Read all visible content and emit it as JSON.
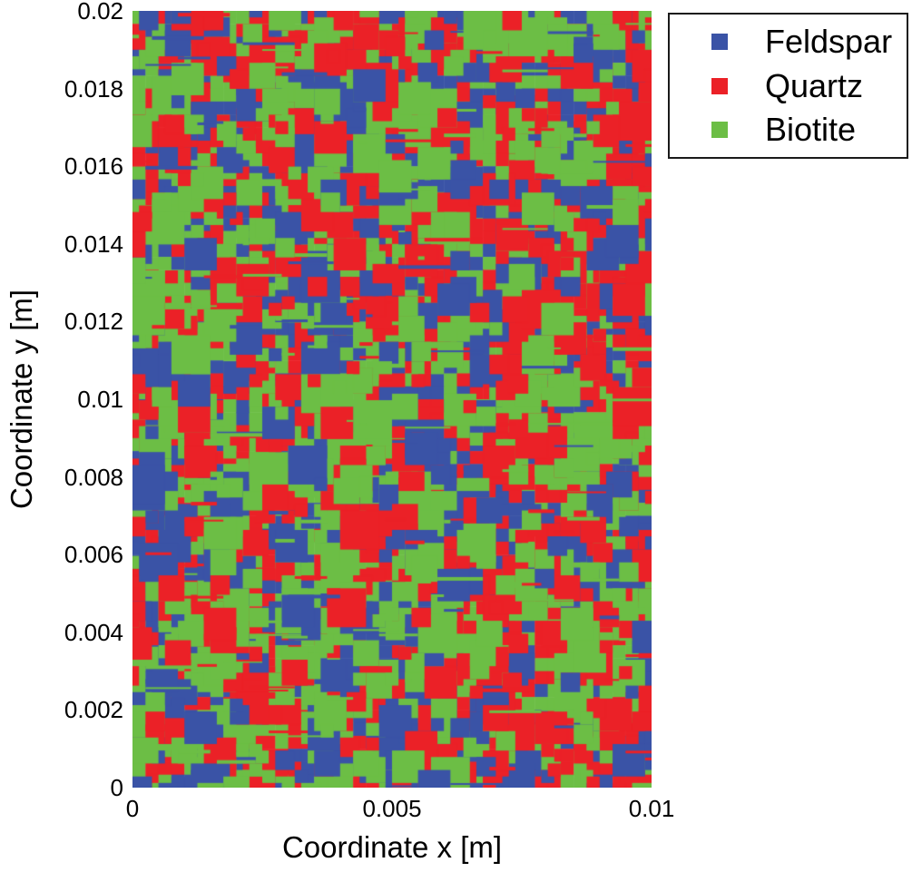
{
  "chart_data": {
    "type": "heatmap",
    "subtype": "categorical-mineral-map",
    "title": "",
    "xlabel": "Coordinate x [m]",
    "ylabel": "Coordinate y [m]",
    "xlim": [
      0,
      0.01
    ],
    "ylim": [
      0,
      0.02
    ],
    "grid": false,
    "axis_frame": false,
    "x_ticks": [
      {
        "value": 0,
        "label": "0"
      },
      {
        "value": 0.005,
        "label": "0.005"
      },
      {
        "value": 0.01,
        "label": "0.01"
      }
    ],
    "y_ticks": [
      {
        "value": 0,
        "label": "0"
      },
      {
        "value": 0.002,
        "label": "0.002"
      },
      {
        "value": 0.004,
        "label": "0.004"
      },
      {
        "value": 0.006,
        "label": "0.006"
      },
      {
        "value": 0.008,
        "label": "0.008"
      },
      {
        "value": 0.01,
        "label": "0.01"
      },
      {
        "value": 0.012,
        "label": "0.012"
      },
      {
        "value": 0.014,
        "label": "0.014"
      },
      {
        "value": 0.016,
        "label": "0.016"
      },
      {
        "value": 0.018,
        "label": "0.018"
      },
      {
        "value": 0.02,
        "label": "0.02"
      }
    ],
    "legend": {
      "position": "outside-top-right",
      "entries": [
        {
          "label": "Feldspar",
          "color": "#3a53a6"
        },
        {
          "label": "Quartz",
          "color": "#eb2127"
        },
        {
          "label": "Biotite",
          "color": "#6cbe45"
        }
      ]
    },
    "map": {
      "categories": [
        "Feldspar",
        "Quartz",
        "Biotite"
      ],
      "colors": [
        "#3a53a6",
        "#eb2127",
        "#6cbe45"
      ],
      "estimated_area_fractions": [
        0.26,
        0.35,
        0.39
      ],
      "texture": {
        "seed": 20240613,
        "grid_nx": 40,
        "grid_ny": 60,
        "base_weights": [
          0.3,
          0.34,
          0.36
        ],
        "square_count": 1500,
        "square_weights": [
          0.22,
          0.36,
          0.42
        ],
        "square_sizes_cells": [
          1,
          1.5,
          2,
          2.5,
          3
        ],
        "square_size_weights": [
          0.28,
          0.3,
          0.24,
          0.13,
          0.05
        ],
        "strip_count": 150
      }
    }
  }
}
